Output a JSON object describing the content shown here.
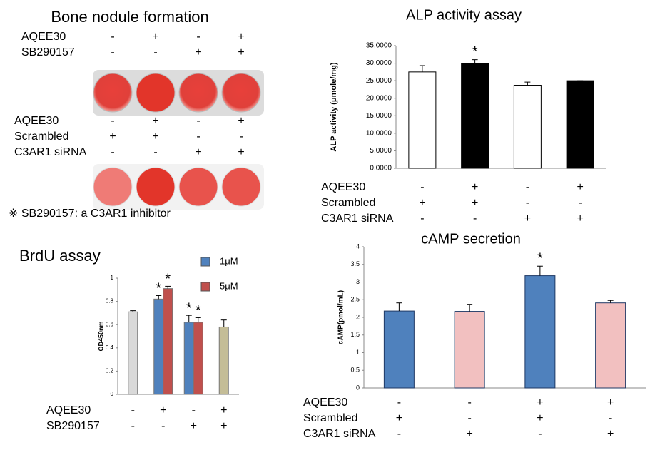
{
  "bone_nodule": {
    "title": "Bone nodule formation",
    "treatments_top": [
      {
        "name": "AQEE30",
        "signs": [
          "-",
          "+",
          "-",
          "+"
        ]
      },
      {
        "name": "SB290157",
        "signs": [
          "-",
          "-",
          "+",
          "+"
        ]
      }
    ],
    "treatments_bottom": [
      {
        "name": "AQEE30",
        "signs": [
          "-",
          "+",
          "-",
          "+"
        ]
      },
      {
        "name": "Scrambled",
        "signs": [
          "+",
          "+",
          "-",
          "-"
        ]
      },
      {
        "name": "C3AR1 siRNA",
        "signs": [
          "-",
          "-",
          "+",
          "+"
        ]
      }
    ],
    "footnote": "※ SB290157: a C3AR1 inhibitor"
  },
  "chart_data": [
    {
      "type": "bar",
      "title": "ALP activity assay",
      "y_label": "ALP activity (μmole/mg)",
      "values": [
        27.5,
        30,
        23.7,
        25
      ],
      "errors": [
        1.8,
        1.0,
        0.9,
        0
      ],
      "colors": [
        "#ffffff",
        "#000000",
        "#ffffff",
        "#000000"
      ],
      "edge_color": "#000000",
      "significance": [
        null,
        "*",
        null,
        null
      ],
      "ylim": [
        0,
        35
      ],
      "yticks": [
        {
          "value": 0,
          "label": "0.0000"
        },
        {
          "value": 5,
          "label": "5.0000"
        },
        {
          "value": 10,
          "label": "10.0000"
        },
        {
          "value": 15,
          "label": "15.0000"
        },
        {
          "value": 20,
          "label": "20.0000"
        },
        {
          "value": 25,
          "label": "25.0000"
        },
        {
          "value": 30,
          "label": "30.0000"
        },
        {
          "value": 35,
          "label": "35.0000"
        }
      ],
      "treatments": [
        {
          "name": "AQEE30",
          "signs": [
            "-",
            "+",
            "-",
            "+"
          ]
        },
        {
          "name": "Scrambled",
          "signs": [
            "+",
            "+",
            "-",
            "-"
          ]
        },
        {
          "name": "C3AR1 siRNA",
          "signs": [
            "-",
            "-",
            "+",
            "+"
          ]
        }
      ]
    },
    {
      "type": "grouped_bar",
      "title": "BrdU assay",
      "y_label": "OD450nm",
      "series": [
        {
          "color": "#d9d9d9",
          "values": [
            0.71,
            null,
            null,
            null
          ],
          "errors": [
            0.01,
            null,
            null,
            null
          ]
        },
        {
          "name": "1μM",
          "color": "#4f81bd",
          "values": [
            null,
            0.82,
            0.62,
            null
          ],
          "errors": [
            null,
            0.03,
            0.06,
            null
          ]
        },
        {
          "name": "5μM",
          "color": "#c0504d",
          "values": [
            null,
            0.91,
            0.62,
            null
          ],
          "errors": [
            null,
            0.02,
            0.04,
            null
          ]
        },
        {
          "color": "#c4bd97",
          "values": [
            null,
            null,
            null,
            0.58
          ],
          "errors": [
            null,
            null,
            null,
            0.06
          ]
        }
      ],
      "significance": [
        null,
        "*",
        "*",
        null
      ],
      "ylim": [
        0,
        1
      ],
      "yticks": [
        0,
        0.2,
        0.4,
        0.6,
        0.8,
        1
      ],
      "treatments": [
        {
          "name": "AQEE30",
          "signs": [
            "-",
            "+",
            "-",
            "+"
          ]
        },
        {
          "name": "SB290157",
          "signs": [
            "-",
            "-",
            "+",
            "+"
          ]
        }
      ]
    },
    {
      "type": "bar",
      "title": "cAMP secretion",
      "y_label": "cAMP(pmol/mL)",
      "values": [
        2.18,
        2.17,
        3.18,
        2.41
      ],
      "errors": [
        0.23,
        0.2,
        0.27,
        0.07
      ],
      "colors": [
        "#4f81bd",
        "#f2c0c0",
        "#4f81bd",
        "#f2c0c0"
      ],
      "edge_color": "#1f3864",
      "significance": [
        null,
        null,
        "*",
        null
      ],
      "ylim": [
        0,
        4
      ],
      "yticks": [
        0,
        0.5,
        1,
        1.5,
        2,
        2.5,
        3,
        3.5,
        4
      ],
      "treatments": [
        {
          "name": "AQEE30",
          "signs": [
            "-",
            "-",
            "+",
            "+"
          ]
        },
        {
          "name": "Scrambled",
          "signs": [
            "+",
            "-",
            "+",
            "-"
          ]
        },
        {
          "name": "C3AR1 siRNA",
          "signs": [
            "-",
            "+",
            "-",
            "+"
          ]
        }
      ]
    }
  ]
}
